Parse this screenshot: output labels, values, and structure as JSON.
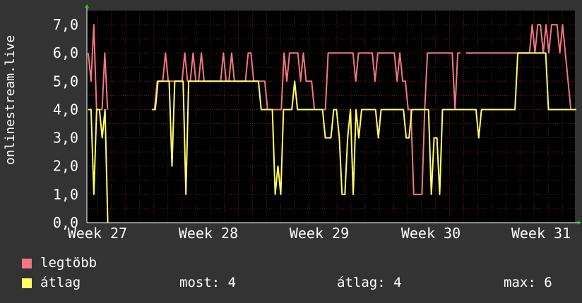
{
  "chart_data": {
    "type": "line",
    "ylabel": "onlinestream.live",
    "y_ticks": [
      "0,0",
      "1,0",
      "2,0",
      "3,0",
      "4,0",
      "5,0",
      "6,0",
      "7,0"
    ],
    "ylim": [
      0,
      7.5
    ],
    "x_ticks": [
      "Week 27",
      "Week 28",
      "Week 29",
      "Week 30",
      "Week 31"
    ],
    "grid": true,
    "legend_position": "bottom-left",
    "colors": {
      "background": "#000000",
      "grid": "#5a1e1e",
      "axis": "#ffffff",
      "page": "#333333"
    },
    "series": [
      {
        "name": "legtöbb",
        "color": "#f07880",
        "values": [
          6,
          5,
          7,
          4,
          4,
          4,
          6,
          4,
          null,
          null,
          null,
          null,
          null,
          null,
          null,
          null,
          null,
          null,
          null,
          null,
          null,
          null,
          null,
          4,
          4,
          5,
          5,
          5,
          6,
          5,
          5,
          5,
          5,
          5,
          5,
          6,
          5,
          5,
          6,
          5,
          5,
          6,
          5,
          5,
          5,
          5,
          5,
          5,
          5,
          6,
          5,
          5,
          6,
          5,
          5,
          5,
          5,
          5,
          6,
          6,
          5,
          5,
          5,
          5,
          5,
          4,
          4,
          4,
          4,
          4,
          4,
          6,
          5,
          6,
          6,
          6,
          6,
          5,
          6,
          5,
          5,
          5,
          4,
          4,
          4,
          4,
          4,
          6,
          6,
          6,
          6,
          6,
          6,
          6,
          6,
          6,
          6,
          5,
          6,
          6,
          6,
          6,
          6,
          6,
          5,
          6,
          6,
          6,
          6,
          6,
          6,
          6,
          5,
          6,
          5,
          5,
          4,
          4,
          1,
          1,
          1,
          1,
          4,
          6,
          6,
          6,
          6,
          6,
          6,
          6,
          6,
          6,
          6,
          4,
          6,
          6,
          null,
          6,
          6,
          6,
          6,
          6,
          6,
          6,
          6,
          6,
          6,
          6,
          6,
          6,
          6,
          6,
          6,
          6,
          6,
          6,
          6,
          6,
          6,
          6,
          6,
          7,
          6,
          7,
          7,
          6,
          7,
          6,
          7,
          7,
          7,
          6,
          7,
          6,
          5,
          4,
          4,
          4
        ]
      },
      {
        "name": "átlag",
        "color": "#ffff66",
        "values": [
          4,
          4,
          1,
          4,
          4,
          3,
          4,
          0,
          null,
          null,
          null,
          null,
          null,
          null,
          null,
          null,
          null,
          null,
          null,
          null,
          null,
          null,
          null,
          4,
          4,
          5,
          5,
          5,
          5,
          5,
          2,
          5,
          5,
          5,
          5,
          1,
          5,
          5,
          5,
          5,
          5,
          5,
          5,
          5,
          5,
          5,
          5,
          5,
          5,
          5,
          5,
          5,
          5,
          5,
          5,
          5,
          5,
          5,
          5,
          5,
          5,
          5,
          4,
          4,
          4,
          4,
          4,
          1,
          2,
          1,
          4,
          4,
          4,
          4,
          5,
          4,
          4,
          4,
          4,
          4,
          4,
          4,
          4,
          4,
          4,
          3,
          3,
          3,
          4,
          4,
          3,
          1,
          1,
          3,
          4,
          1,
          4,
          3,
          4,
          4,
          4,
          4,
          4,
          4,
          3,
          4,
          4,
          4,
          4,
          4,
          4,
          4,
          4,
          4,
          3,
          3,
          4,
          4,
          4,
          4,
          4,
          4,
          4,
          1,
          3,
          3,
          1,
          4,
          4,
          4,
          4,
          4,
          4,
          4,
          4,
          4,
          4,
          4,
          4,
          4,
          3,
          4,
          4,
          4,
          4,
          4,
          4,
          4,
          4,
          4,
          4,
          4,
          4,
          4,
          6,
          6,
          6,
          6,
          6,
          6,
          6,
          6,
          6,
          6,
          6,
          4,
          4,
          4,
          4,
          4,
          4,
          4,
          4,
          4,
          4,
          4
        ]
      }
    ]
  },
  "legend": {
    "max_label": "legtöbb",
    "avg_label": "átlag"
  },
  "stats": {
    "now": "most: 4",
    "average": "átlag: 4",
    "max": "max: 6"
  }
}
